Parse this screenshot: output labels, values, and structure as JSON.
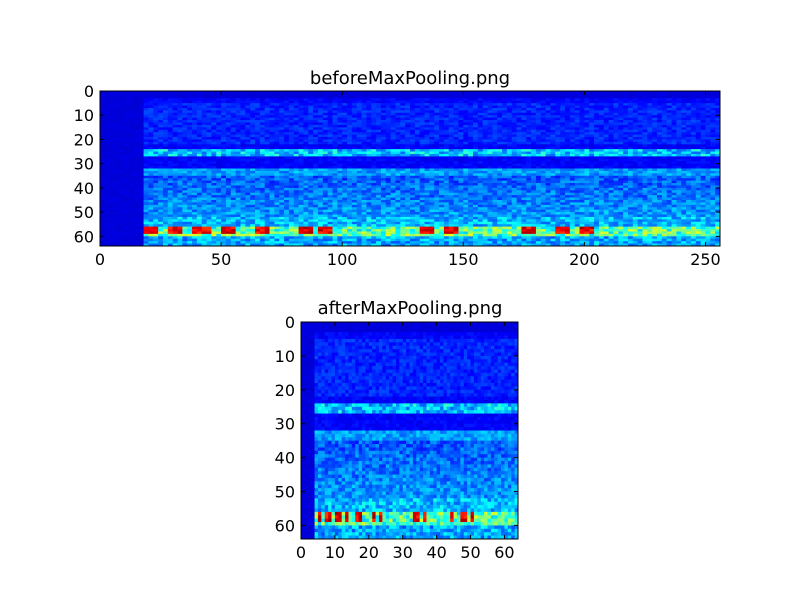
{
  "figure": {
    "background": "#ffffff"
  },
  "chart_data": [
    {
      "type": "heatmap",
      "title": "beforeMaxPooling.png",
      "xlabel": "",
      "ylabel": "",
      "xlim": [
        0,
        256
      ],
      "ylim": [
        64,
        0
      ],
      "xticks": [
        "0",
        "50",
        "100",
        "150",
        "200",
        "250"
      ],
      "yticks": [
        "0",
        "10",
        "20",
        "30",
        "40",
        "50",
        "60"
      ],
      "colormap": "jet",
      "grid": false,
      "legend": "none",
      "image_shape": {
        "rows": 64,
        "cols": 256
      },
      "silent_columns_end": 18,
      "horizontal_bands": [
        {
          "row": 25,
          "level": "cyan"
        },
        {
          "row": 33,
          "level": "light-blue"
        },
        {
          "row": 57,
          "level": "yellow-red"
        }
      ]
    },
    {
      "type": "heatmap",
      "title": "afterMaxPooling.png",
      "xlabel": "",
      "ylabel": "",
      "xlim": [
        0,
        64
      ],
      "ylim": [
        64,
        0
      ],
      "xticks": [
        "0",
        "10",
        "20",
        "30",
        "40",
        "50",
        "60"
      ],
      "yticks": [
        "0",
        "10",
        "20",
        "30",
        "40",
        "50",
        "60"
      ],
      "colormap": "jet",
      "grid": false,
      "legend": "none",
      "image_shape": {
        "rows": 64,
        "cols": 64
      },
      "silent_columns_end": 4,
      "horizontal_bands": [
        {
          "row": 25,
          "level": "cyan"
        },
        {
          "row": 33,
          "level": "light-blue"
        },
        {
          "row": 57,
          "level": "yellow-red"
        }
      ]
    }
  ]
}
